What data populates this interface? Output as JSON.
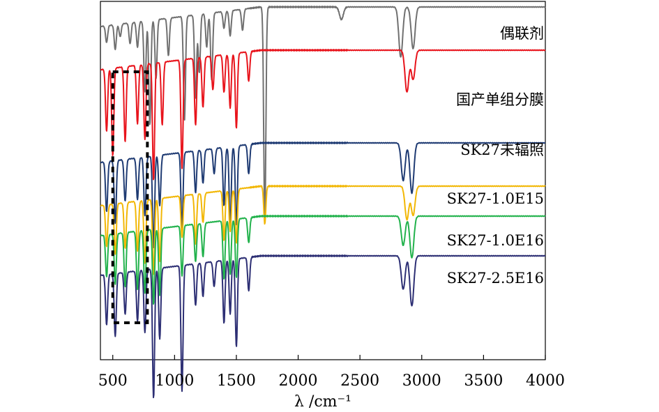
{
  "chart_data": {
    "type": "line",
    "xlabel": "λ /cm⁻¹",
    "xlim": [
      400,
      4000
    ],
    "xticks": [
      500,
      1000,
      1500,
      2000,
      2500,
      3000,
      3500,
      4000
    ],
    "xtick_labels": [
      "500",
      "1000",
      "1500",
      "2000",
      "2500",
      "3000",
      "3500",
      "4000"
    ],
    "yticks_shown": false,
    "grid": false,
    "y_note": "transmittance, offset stacked spectra (no numeric y scale shown)",
    "series": [
      {
        "name": "偶联剂",
        "color": "#707070",
        "baseline": 5,
        "dips": [
          [
            450,
            4
          ],
          [
            520,
            6
          ],
          [
            560,
            3
          ],
          [
            640,
            5
          ],
          [
            700,
            6
          ],
          [
            760,
            17
          ],
          [
            800,
            25
          ],
          [
            850,
            14
          ],
          [
            950,
            9
          ],
          [
            1080,
            25
          ],
          [
            1170,
            20
          ],
          [
            1200,
            14
          ],
          [
            1260,
            8
          ],
          [
            1300,
            16
          ],
          [
            1400,
            4
          ],
          [
            1450,
            6
          ],
          [
            1550,
            5
          ],
          [
            1730,
            52
          ],
          [
            2350,
            3
          ],
          [
            2830,
            12
          ],
          [
            2930,
            10
          ]
        ]
      },
      {
        "name": "国产单组分膜",
        "color": "#e8141c",
        "baseline": 4,
        "dips": [
          [
            450,
            15
          ],
          [
            500,
            21
          ],
          [
            600,
            18
          ],
          [
            700,
            14
          ],
          [
            760,
            18
          ],
          [
            830,
            28
          ],
          [
            900,
            15
          ],
          [
            1060,
            26
          ],
          [
            1170,
            16
          ],
          [
            1230,
            12
          ],
          [
            1310,
            8
          ],
          [
            1400,
            9
          ],
          [
            1450,
            13
          ],
          [
            1500,
            18
          ],
          [
            1600,
            7
          ],
          [
            2880,
            10
          ],
          [
            2930,
            7
          ]
        ]
      },
      {
        "name": "SK27未辐照",
        "color": "#1f3b73",
        "baseline": 5,
        "dips": [
          [
            450,
            12
          ],
          [
            520,
            15
          ],
          [
            600,
            10
          ],
          [
            700,
            10
          ],
          [
            760,
            14
          ],
          [
            830,
            22
          ],
          [
            880,
            12
          ],
          [
            1060,
            18
          ],
          [
            1170,
            10
          ],
          [
            1230,
            8
          ],
          [
            1320,
            6
          ],
          [
            1400,
            14
          ],
          [
            1450,
            19
          ],
          [
            1500,
            19
          ],
          [
            1600,
            7
          ],
          [
            2850,
            9
          ],
          [
            2920,
            12
          ]
        ]
      },
      {
        "name": "SK27-1.0E15",
        "color": "#f2b705",
        "baseline": 5,
        "dips": [
          [
            450,
            10
          ],
          [
            520,
            12
          ],
          [
            600,
            11
          ],
          [
            700,
            12
          ],
          [
            760,
            15
          ],
          [
            830,
            18
          ],
          [
            880,
            15
          ],
          [
            1060,
            10
          ],
          [
            1170,
            12
          ],
          [
            1230,
            7
          ],
          [
            1400,
            12
          ],
          [
            1450,
            10
          ],
          [
            1500,
            13
          ],
          [
            1730,
            9
          ],
          [
            2880,
            8
          ],
          [
            2930,
            7
          ]
        ]
      },
      {
        "name": "SK27-1.0E16",
        "color": "#22b24c",
        "baseline": 5,
        "dips": [
          [
            450,
            10
          ],
          [
            520,
            12
          ],
          [
            600,
            13
          ],
          [
            700,
            14
          ],
          [
            760,
            15
          ],
          [
            830,
            18
          ],
          [
            880,
            16
          ],
          [
            1060,
            12
          ],
          [
            1170,
            9
          ],
          [
            1230,
            8
          ],
          [
            1400,
            14
          ],
          [
            1450,
            13
          ],
          [
            1500,
            14
          ],
          [
            1600,
            6
          ],
          [
            2850,
            7
          ],
          [
            2920,
            10
          ]
        ]
      },
      {
        "name": "SK27-2.5E16",
        "color": "#2d2f74",
        "baseline": 4,
        "dips": [
          [
            450,
            12
          ],
          [
            520,
            15
          ],
          [
            600,
            10
          ],
          [
            700,
            12
          ],
          [
            760,
            15
          ],
          [
            830,
            31
          ],
          [
            880,
            17
          ],
          [
            1060,
            30
          ],
          [
            1170,
            10
          ],
          [
            1230,
            8
          ],
          [
            1320,
            6
          ],
          [
            1400,
            15
          ],
          [
            1450,
            13
          ],
          [
            1500,
            21
          ],
          [
            1600,
            8
          ],
          [
            2850,
            8
          ],
          [
            2920,
            12
          ]
        ]
      }
    ],
    "annotations": [
      {
        "type": "dashed-box",
        "x_range": [
          500,
          780
        ],
        "style": "black dashed"
      }
    ]
  }
}
